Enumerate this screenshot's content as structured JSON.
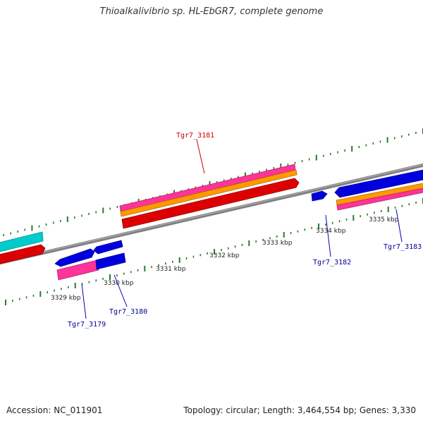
{
  "title": "Thioalkalivibrio sp. HL-EbGR7, complete genome",
  "footer": {
    "accession": "Accession: NC_011901",
    "summary": "Topology: circular; Length: 3,464,554 bp; Genes: 3,330"
  },
  "colors": {
    "backbone": "#808080",
    "tick": "#2a7a2a",
    "cds_forward": "#0000dd",
    "cds_reverse": "#dd0000",
    "rna": "#ff3399",
    "orange_track": "#ff9900",
    "cyan_track": "#00cccc",
    "label_forward": "#000099",
    "label_reverse": "#cc0000"
  },
  "chart_data": {
    "type": "genome_map",
    "axis_unit": "kbp",
    "tick_labels": [
      {
        "value": 3329,
        "label": "3329 kbp"
      },
      {
        "value": 3330,
        "label": "3330 kbp"
      },
      {
        "value": 3331,
        "label": "3331 kbp"
      },
      {
        "value": 3332,
        "label": "3332 kbp"
      },
      {
        "value": 3333,
        "label": "3333 kbp"
      },
      {
        "value": 3334,
        "label": "3334 kbp"
      },
      {
        "value": 3335,
        "label": "3335 kbp"
      }
    ],
    "genes": [
      {
        "name": "Tgr7_3179",
        "strand": "forward"
      },
      {
        "name": "Tgr7_3180",
        "strand": "forward"
      },
      {
        "name": "Tgr7_3181",
        "strand": "reverse"
      },
      {
        "name": "Tgr7_3182",
        "strand": "forward"
      },
      {
        "name": "Tgr7_3183",
        "strand": "forward"
      }
    ]
  }
}
